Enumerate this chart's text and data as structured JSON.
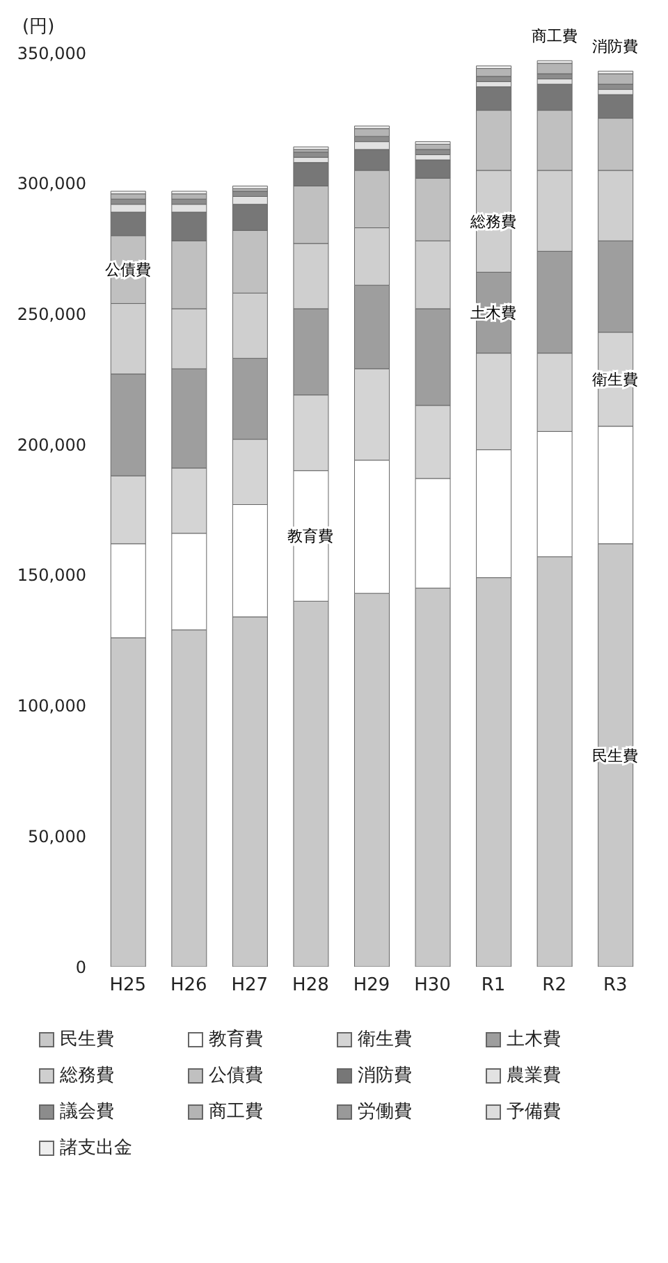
{
  "chart_data": {
    "type": "bar",
    "stacked": true,
    "ylabel": "(円)",
    "categories": [
      "H25",
      "H26",
      "H27",
      "H28",
      "H29",
      "H30",
      "R1",
      "R2",
      "R3"
    ],
    "series": [
      {
        "name": "民生費",
        "color": "#c8c8c8",
        "values": [
          126000,
          129000,
          134000,
          140000,
          143000,
          145000,
          149000,
          157000,
          162000
        ]
      },
      {
        "name": "教育費",
        "color": "#ffffff",
        "values": [
          36000,
          37000,
          43000,
          50000,
          51000,
          42000,
          49000,
          48000,
          45000
        ]
      },
      {
        "name": "衛生費",
        "color": "#d4d4d4",
        "values": [
          26000,
          25000,
          25000,
          29000,
          35000,
          28000,
          37000,
          30000,
          36000
        ]
      },
      {
        "name": "土木費",
        "color": "#9e9e9e",
        "values": [
          39000,
          38000,
          31000,
          33000,
          32000,
          37000,
          31000,
          39000,
          35000
        ]
      },
      {
        "name": "総務費",
        "color": "#cfcfcf",
        "values": [
          27000,
          23000,
          25000,
          25000,
          22000,
          26000,
          39000,
          31000,
          27000
        ]
      },
      {
        "name": "公債費",
        "color": "#c0c0c0",
        "values": [
          26000,
          26000,
          24000,
          22000,
          22000,
          24000,
          23000,
          23000,
          20000
        ]
      },
      {
        "name": "消防費",
        "color": "#777777",
        "values": [
          9000,
          11000,
          10000,
          9000,
          8000,
          7000,
          9000,
          10000,
          9000
        ]
      },
      {
        "name": "農業費",
        "color": "#e2e2e2",
        "values": [
          3000,
          3000,
          3000,
          2000,
          3000,
          2000,
          2000,
          2000,
          2000
        ]
      },
      {
        "name": "議会費",
        "color": "#8c8c8c",
        "values": [
          2000,
          2000,
          2000,
          2000,
          2000,
          2000,
          2000,
          2000,
          2000
        ]
      },
      {
        "name": "商工費",
        "color": "#b4b4b4",
        "values": [
          2000,
          2000,
          1000,
          1000,
          3000,
          2000,
          3000,
          4000,
          4000
        ]
      },
      {
        "name": "労働費",
        "color": "#999999",
        "values": [
          0,
          0,
          0,
          0,
          0,
          0,
          0,
          0,
          0
        ]
      },
      {
        "name": "予備費",
        "color": "#dddddd",
        "values": [
          0,
          0,
          0,
          0,
          0,
          0,
          0,
          0,
          0
        ]
      },
      {
        "name": "諸支出金",
        "color": "#eeeeee",
        "values": [
          1000,
          1000,
          1000,
          1000,
          1000,
          1000,
          1000,
          1000,
          1000
        ]
      }
    ],
    "ylim": [
      0,
      350000
    ],
    "yticks": [
      0,
      {
        "value": 50000,
        "label": "50,000"
      },
      {
        "value": 100000,
        "label": "100,000"
      },
      {
        "value": 150000,
        "label": "150,000"
      },
      {
        "value": 200000,
        "label": "200,000"
      },
      {
        "value": 250000,
        "label": "250,000"
      },
      {
        "value": 300000,
        "label": "300,000"
      },
      {
        "value": 350000,
        "label": "350,000"
      }
    ],
    "legend": "bottom",
    "annotations": [
      "民生費",
      "教育費",
      "衛生費",
      "土木費",
      "総務費",
      "公債費",
      "商工費",
      "消防費"
    ]
  }
}
